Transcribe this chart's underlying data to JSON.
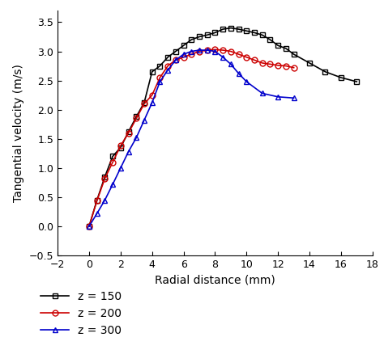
{
  "z150_x": [
    0,
    0.5,
    1,
    1.5,
    2,
    2.5,
    3,
    3.5,
    4,
    4.5,
    5,
    5.5,
    6,
    6.5,
    7,
    7.5,
    8,
    8.5,
    9,
    9.5,
    10,
    10.5,
    11,
    11.5,
    12,
    12.5,
    13,
    14,
    15,
    16,
    17
  ],
  "z150_y": [
    0.0,
    0.45,
    0.85,
    1.2,
    1.35,
    1.62,
    1.88,
    2.12,
    2.65,
    2.75,
    2.9,
    3.0,
    3.1,
    3.2,
    3.25,
    3.28,
    3.32,
    3.38,
    3.4,
    3.38,
    3.35,
    3.32,
    3.28,
    3.2,
    3.1,
    3.05,
    2.95,
    2.8,
    2.65,
    2.55,
    2.48
  ],
  "z200_x": [
    0,
    0.5,
    1,
    1.5,
    2,
    2.5,
    3,
    3.5,
    4,
    4.5,
    5,
    5.5,
    6,
    6.5,
    7,
    7.5,
    8,
    8.5,
    9,
    9.5,
    10,
    10.5,
    11,
    11.5,
    12,
    12.5,
    13
  ],
  "z200_y": [
    0.0,
    0.44,
    0.82,
    1.1,
    1.38,
    1.6,
    1.85,
    2.1,
    2.25,
    2.55,
    2.75,
    2.85,
    2.9,
    2.95,
    3.0,
    3.02,
    3.03,
    3.02,
    3.0,
    2.95,
    2.9,
    2.85,
    2.8,
    2.78,
    2.76,
    2.75,
    2.72
  ],
  "z300_x": [
    0,
    0.5,
    1,
    1.5,
    2,
    2.5,
    3,
    3.5,
    4,
    4.5,
    5,
    5.5,
    6,
    6.5,
    7,
    7.5,
    8,
    8.5,
    9,
    9.5,
    10,
    11,
    12,
    13
  ],
  "z300_y": [
    0.0,
    0.22,
    0.45,
    0.72,
    1.0,
    1.28,
    1.52,
    1.82,
    2.12,
    2.48,
    2.68,
    2.85,
    2.95,
    3.0,
    3.02,
    3.02,
    3.0,
    2.9,
    2.78,
    2.62,
    2.48,
    2.28,
    2.22,
    2.2
  ],
  "colors": [
    "#000000",
    "#cc0000",
    "#0000cc"
  ],
  "markers": [
    "s",
    "o",
    "^"
  ],
  "labels": [
    "z = 150",
    "z = 200",
    "z = 300"
  ],
  "xlabel": "Radial distance (mm)",
  "ylabel": "Tangential velocity (m/s)",
  "xlim": [
    -2,
    18
  ],
  "ylim": [
    -0.5,
    3.7
  ],
  "xticks": [
    -2,
    0,
    2,
    4,
    6,
    8,
    10,
    12,
    14,
    16,
    18
  ],
  "yticks": [
    -0.5,
    0.0,
    0.5,
    1.0,
    1.5,
    2.0,
    2.5,
    3.0,
    3.5
  ],
  "markersize": 5,
  "linewidth": 1.2,
  "bg_color": "#ffffff"
}
